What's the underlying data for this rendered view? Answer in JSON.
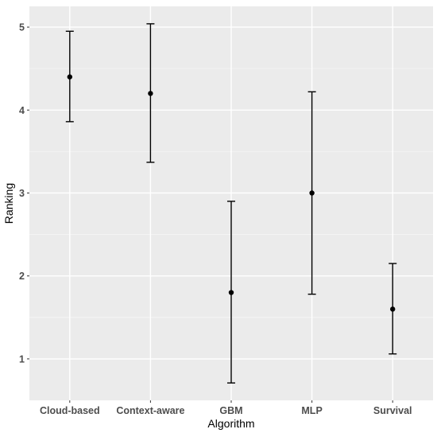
{
  "chart_data": {
    "type": "scatter",
    "title": "",
    "xlabel": "Algorithm",
    "ylabel": "Ranking",
    "categories": [
      "Cloud-based",
      "Context-aware",
      "GBM",
      "MLP",
      "Survival"
    ],
    "series": [
      {
        "values": [
          4.4,
          4.2,
          1.8,
          3.0,
          1.6
        ],
        "lower": [
          3.86,
          3.37,
          0.71,
          1.78,
          1.06
        ],
        "upper": [
          4.95,
          5.04,
          2.9,
          4.22,
          2.15
        ]
      }
    ],
    "yticks": [
      1,
      2,
      3,
      4,
      5
    ],
    "ylim": [
      0.5,
      5.25
    ],
    "grid": true,
    "legend": "none",
    "colors": {
      "panel": "#ebebeb",
      "grid_major": "#ffffff",
      "grid_minor": "#f5f5f5",
      "mark": "#000000",
      "tick_text": "#4d4d4d"
    }
  }
}
